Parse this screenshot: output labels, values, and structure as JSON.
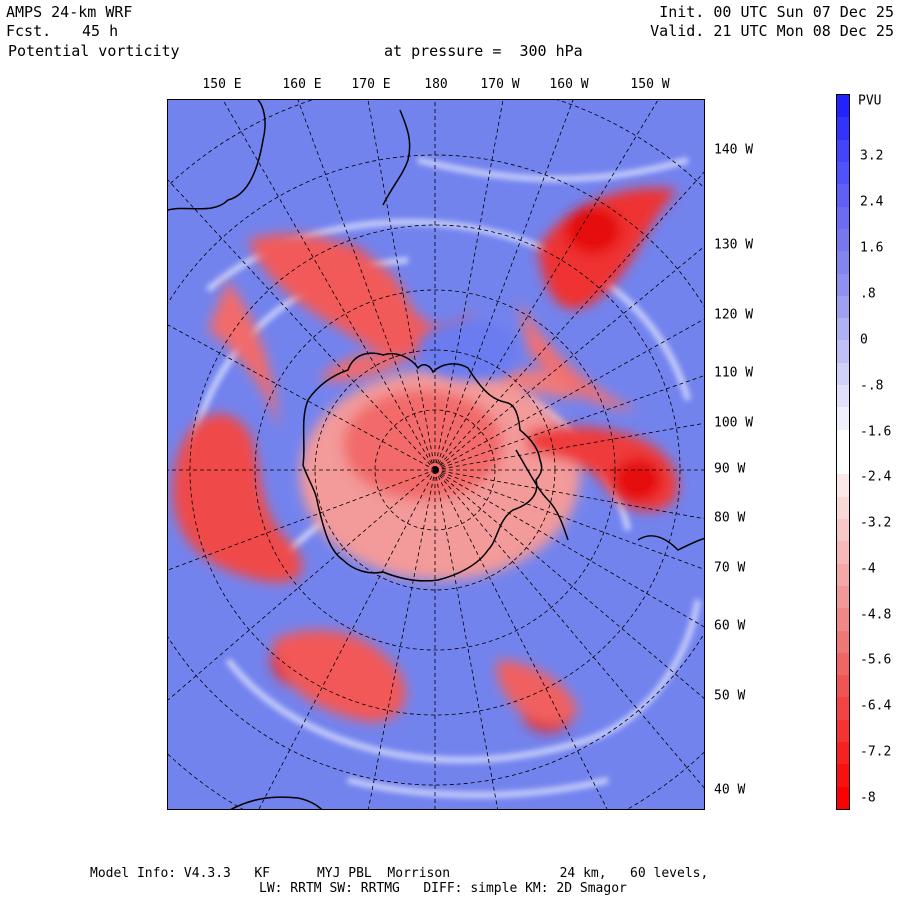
{
  "header": {
    "model": "AMPS 24-km WRF",
    "fcst_label": "Fcst.",
    "fcst_value": "45 h",
    "field": "Potential vorticity",
    "pressure_text": "at pressure =  300 hPa",
    "init": "Init. 00 UTC Sun 07 Dec 25",
    "valid": "Valid. 21 UTC Mon 08 Dec 25"
  },
  "map": {
    "top_lon_labels": [
      "150 E",
      "160 E",
      "170 E",
      "180",
      "170 W",
      "160 W",
      "150 W"
    ],
    "right_lon_labels": [
      "140 W",
      "130 W",
      "120 W",
      "110 W",
      "100 W",
      "90 W",
      "80 W",
      "70 W",
      "60 W",
      "50 W",
      "40 W"
    ]
  },
  "colorbar": {
    "unit": "PVU",
    "labels": [
      "3.2",
      "2.4",
      "1.6",
      ".8",
      "0",
      "-.8",
      "-1.6",
      "-2.4",
      "-3.2",
      "-4",
      "-4.8",
      "-5.6",
      "-6.4",
      "-7.2",
      "-8"
    ],
    "colors": [
      "#2222ff",
      "#3333fe",
      "#4444fc",
      "#5252fa",
      "#6060f6",
      "#6c6cf2",
      "#7878ee",
      "#8484ee",
      "#9090f0",
      "#a0a0f2",
      "#b0b0f4",
      "#c0c0f6",
      "#d0d0f8",
      "#e0e0fa",
      "#f0f0fc",
      "#ffffff",
      "#ffffff",
      "#fce8e8",
      "#fad8d8",
      "#f8c8c8",
      "#f6b8b8",
      "#f4a8a8",
      "#f29898",
      "#f08888",
      "#ee7777",
      "#ee6666",
      "#f05555",
      "#f24444",
      "#f43333",
      "#f62222",
      "#f81111",
      "#fa0000"
    ]
  },
  "footer": {
    "line1": "Model Info: V4.3.3   KF      MYJ PBL  Morrison              24 km,   60 levels,",
    "line2": "LW: RRTM SW: RRTMG   DIFF: simple KM: 2D Smagor"
  }
}
